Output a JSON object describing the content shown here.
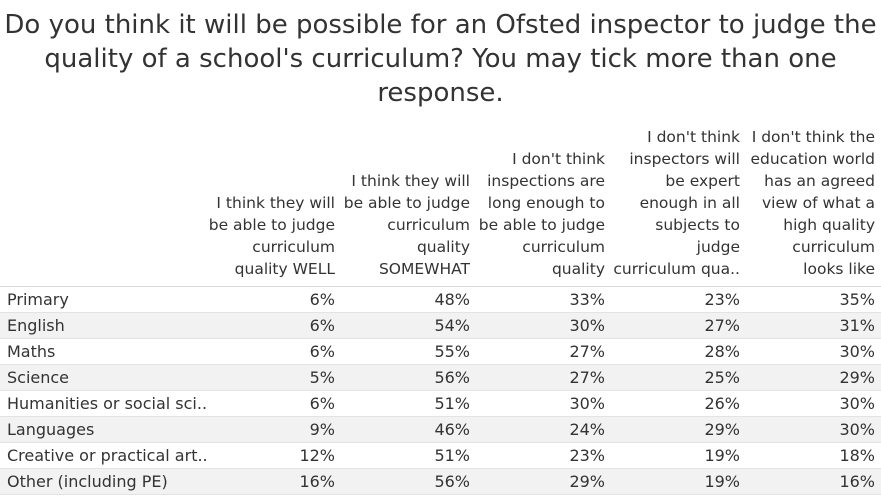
{
  "chart_data": {
    "type": "table",
    "title_lines": [
      "Do you think it will be possible for an Ofsted inspector to judge the",
      "quality of a school's curriculum? You may tick more than one",
      "response."
    ],
    "columns": [
      {
        "lines": [
          "I think they will",
          "be able to judge",
          "curriculum",
          "quality WELL"
        ]
      },
      {
        "lines": [
          "I think they will",
          "be able to judge",
          "curriculum",
          "quality",
          "SOMEWHAT"
        ]
      },
      {
        "lines": [
          "I don't think",
          "inspections are",
          "long enough to",
          "be able to judge",
          "curriculum",
          "quality"
        ]
      },
      {
        "lines": [
          "I don't think",
          "inspectors will",
          "be expert",
          "enough in all",
          "subjects to",
          "judge",
          "curriculum qua.."
        ]
      },
      {
        "lines": [
          "I don't think the",
          "education world",
          "has an agreed",
          "view of what a",
          "high quality",
          "curriculum",
          "looks like"
        ]
      }
    ],
    "rows": [
      {
        "label": "Primary",
        "values": [
          "6%",
          "48%",
          "33%",
          "23%",
          "35%"
        ]
      },
      {
        "label": "English",
        "values": [
          "6%",
          "54%",
          "30%",
          "27%",
          "31%"
        ]
      },
      {
        "label": "Maths",
        "values": [
          "6%",
          "55%",
          "27%",
          "28%",
          "30%"
        ]
      },
      {
        "label": "Science",
        "values": [
          "5%",
          "56%",
          "27%",
          "25%",
          "29%"
        ]
      },
      {
        "label": "Humanities or social sci..",
        "values": [
          "6%",
          "51%",
          "30%",
          "26%",
          "30%"
        ]
      },
      {
        "label": "Languages",
        "values": [
          "9%",
          "46%",
          "24%",
          "29%",
          "30%"
        ]
      },
      {
        "label": "Creative or practical art..",
        "values": [
          "12%",
          "51%",
          "23%",
          "19%",
          "18%"
        ]
      },
      {
        "label": "Other (including PE)",
        "values": [
          "16%",
          "56%",
          "29%",
          "19%",
          "16%"
        ]
      }
    ],
    "colors": {
      "text": "#333333",
      "band": "#f2f2f2",
      "rule": "#e3e3e3"
    }
  }
}
